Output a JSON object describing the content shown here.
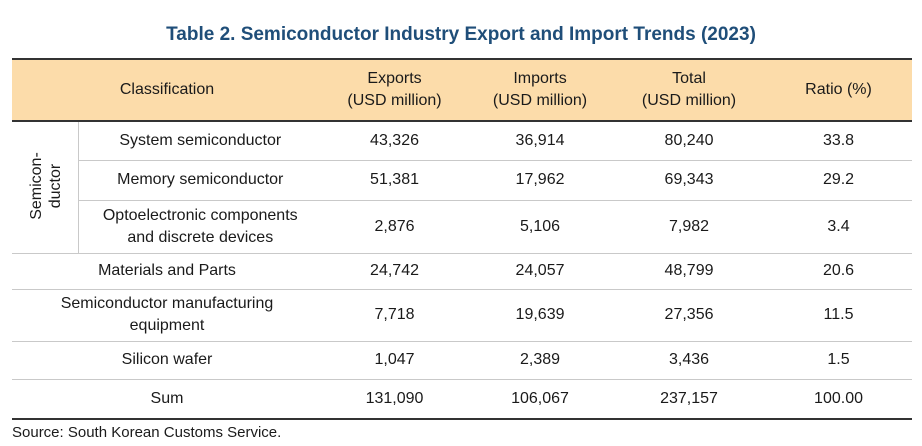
{
  "title": "Table 2. Semiconductor Industry Export and Import Trends (2023)",
  "table": {
    "header": [
      {
        "label": "Classification"
      },
      {
        "label": "Exports",
        "unit": "(USD million)"
      },
      {
        "label": "Imports",
        "unit": "(USD million)"
      },
      {
        "label": "Total",
        "unit": "(USD million)"
      },
      {
        "label": "Ratio (%)"
      }
    ],
    "semiconductor_group": {
      "label": [
        "Semicon-",
        "ductor"
      ],
      "rows": [
        {
          "label": [
            "System semiconductor"
          ],
          "values": [
            "43,326",
            "36,914",
            "80,240",
            "33.8"
          ],
          "bold_ratio": true
        },
        {
          "label": [
            "Memory semiconductor"
          ],
          "values": [
            "51,381",
            "17,962",
            "69,343",
            "29.2"
          ],
          "bold_ratio": true
        },
        {
          "label": [
            "Optoelectronic components",
            "and discrete devices"
          ],
          "values": [
            "2,876",
            "5,106",
            "7,982",
            "3.4"
          ],
          "bold_ratio": false
        }
      ]
    },
    "rows": [
      {
        "label": [
          "Materials and Parts"
        ],
        "values": [
          "24,742",
          "24,057",
          "48,799",
          "20.6"
        ],
        "bold_ratio": true
      },
      {
        "label": [
          "Semiconductor manufacturing",
          "equipment"
        ],
        "values": [
          "7,718",
          "19,639",
          "27,356",
          "11.5"
        ],
        "bold_ratio": false
      },
      {
        "label": [
          "Silicon wafer"
        ],
        "values": [
          "1,047",
          "2,389",
          "3,436",
          "1.5"
        ],
        "bold_ratio": false
      },
      {
        "label": [
          "Sum"
        ],
        "values": [
          "131,090",
          "106,067",
          "237,157",
          "100.00"
        ],
        "bold_ratio": false
      }
    ]
  },
  "source": "Source: South Korean Customs Service."
}
